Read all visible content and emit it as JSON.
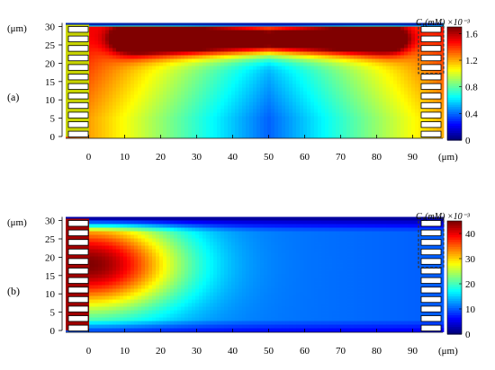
{
  "figure": {
    "panels": [
      {
        "id": "a",
        "label": "(a)",
        "y_unit": "(μm)",
        "x_unit": "(μm)",
        "colorbar_title": "C₁(mM) ×10⁻³",
        "colorbar_ticks": [
          "1.6",
          "1.2",
          "0.8",
          "0.4",
          "0"
        ],
        "x_ticks": [
          "0",
          "10",
          "20",
          "30",
          "40",
          "50",
          "60",
          "70",
          "80",
          "90"
        ],
        "y_ticks": [
          "30",
          "25",
          "20",
          "15",
          "10",
          "5",
          "0"
        ]
      },
      {
        "id": "b",
        "label": "(b)",
        "y_unit": "(μm)",
        "x_unit": "(μm)",
        "colorbar_title": "C₃(mM) ×10⁻³",
        "colorbar_ticks": [
          "40",
          "30",
          "20",
          "10",
          "0"
        ],
        "x_ticks": [
          "0",
          "10",
          "20",
          "30",
          "40",
          "50",
          "60",
          "70",
          "80",
          "90"
        ],
        "y_ticks": [
          "30",
          "25",
          "20",
          "15",
          "10",
          "5",
          "0"
        ]
      }
    ]
  },
  "chart_data": [
    {
      "type": "heatmap",
      "title": "",
      "xlabel": "(μm)",
      "ylabel": "(μm)",
      "xlim": [
        -5,
        92
      ],
      "ylim": [
        0,
        31
      ],
      "colorbar": {
        "label": "C₁(mM) ×10⁻³",
        "range": [
          0,
          1.7
        ],
        "ticks": [
          0,
          0.4,
          0.8,
          1.2,
          1.6
        ],
        "colormap": "jet"
      },
      "features": {
        "high_band": {
          "y_range": [
            23,
            30
          ],
          "x_range": [
            8,
            88
          ],
          "value": 1.7
        },
        "low_region": {
          "center": [
            55,
            5
          ],
          "value": 0.35
        },
        "top_boundary_value": 0.05,
        "electrode_columns": [
          "left",
          "right"
        ],
        "highlight_box": "right, y 17 to 31"
      }
    },
    {
      "type": "heatmap",
      "title": "",
      "xlabel": "(μm)",
      "ylabel": "(μm)",
      "xlim": [
        -5,
        92
      ],
      "ylim": [
        0,
        31
      ],
      "colorbar": {
        "label": "C₃(mM) ×10⁻³",
        "range": [
          0,
          45
        ],
        "ticks": [
          0,
          10,
          20,
          30,
          40
        ],
        "colormap": "jet"
      },
      "features": {
        "max_region": {
          "center": [
            0,
            18
          ],
          "value": 45
        },
        "plume_extent_x": 45,
        "far_field_value": 15,
        "top_boundary_value": 2,
        "electrode_columns": [
          "left",
          "right"
        ],
        "highlight_box": "right, y 17 to 31"
      }
    }
  ]
}
